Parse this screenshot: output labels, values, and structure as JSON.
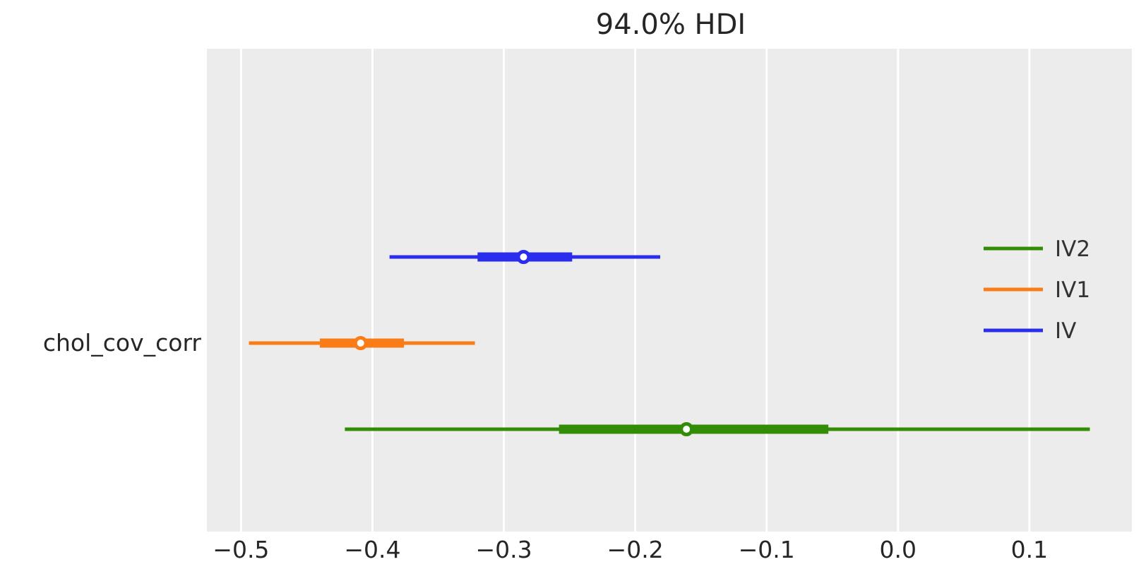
{
  "figure": {
    "background_color": "#ffffff",
    "text_color": "#262626"
  },
  "chart_data": {
    "type": "forest",
    "title": "94.0% HDI",
    "row_label": "chol_cov_corr",
    "plot_background": "#ececec",
    "grid": {
      "orientation": "vertical",
      "color": "#ffffff",
      "linewidth": 3
    },
    "xlim": [
      -0.526,
      0.178
    ],
    "x_ticks": [
      -0.5,
      -0.4,
      -0.3,
      -0.2,
      -0.1,
      0.0,
      0.1
    ],
    "x_tick_labels": [
      "−0.5",
      "−0.4",
      "−0.3",
      "−0.2",
      "−0.1",
      "0.0",
      "0.1"
    ],
    "series": [
      {
        "name": "IV",
        "color": "#2a2eec",
        "hdi": [
          -0.387,
          -0.181
        ],
        "quartile": [
          -0.32,
          -0.248
        ],
        "median": -0.285
      },
      {
        "name": "IV1",
        "color": "#fa7c17",
        "hdi": [
          -0.494,
          -0.322
        ],
        "quartile": [
          -0.44,
          -0.376
        ],
        "median": -0.409
      },
      {
        "name": "IV2",
        "color": "#328c06",
        "hdi": [
          -0.421,
          0.146
        ],
        "quartile": [
          -0.258,
          -0.053
        ],
        "median": -0.161
      }
    ],
    "legend": {
      "position": "right",
      "frame": false,
      "entries": [
        {
          "label": "IV2",
          "color": "#328c06"
        },
        {
          "label": "IV1",
          "color": "#fa7c17"
        },
        {
          "label": "IV",
          "color": "#2a2eec"
        }
      ]
    }
  }
}
